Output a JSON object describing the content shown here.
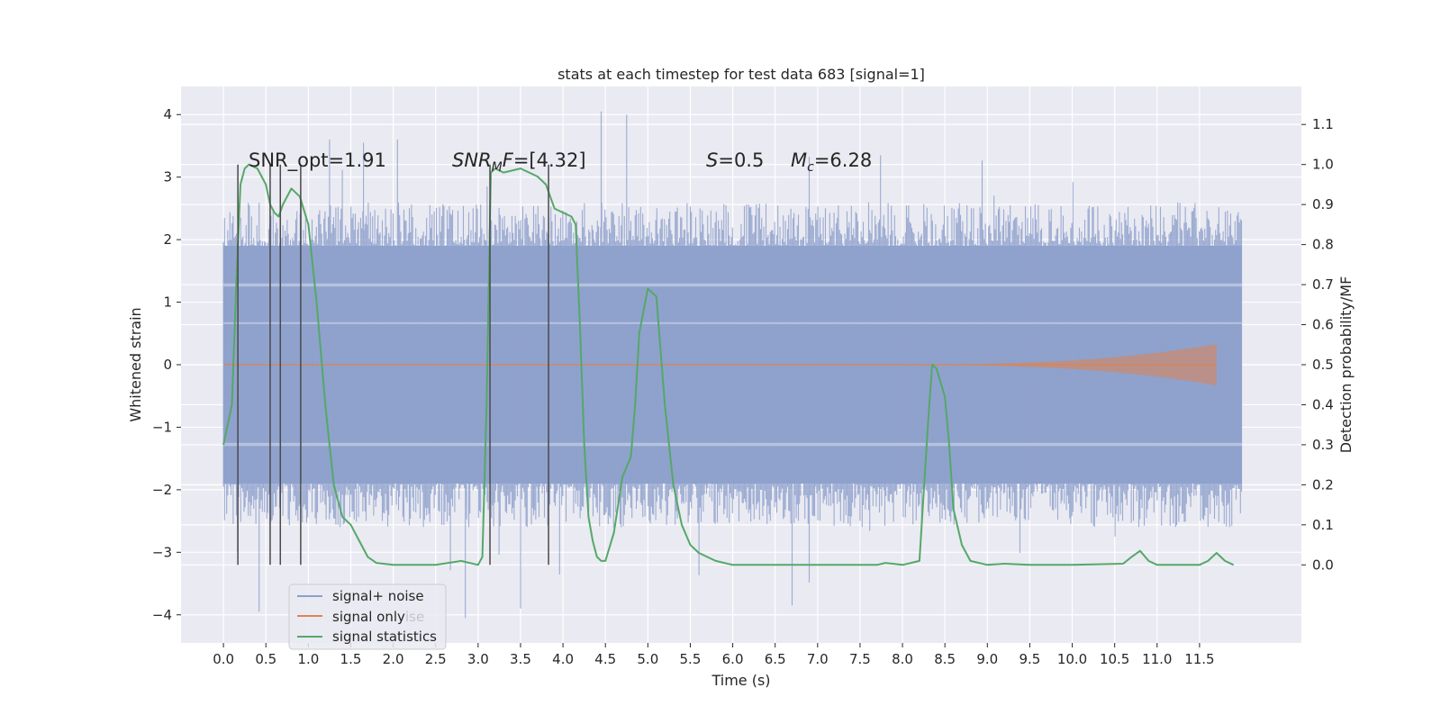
{
  "chart_data": {
    "type": "line",
    "title": "stats at each timestep for test data 683 [signal=1]",
    "xlabel": "Time (s)",
    "ylabel": "Whitened strain",
    "y2label": "Detection probability/MF",
    "xlim": [
      -0.5,
      12.7
    ],
    "ylim": [
      -4.45,
      4.45
    ],
    "y2lim": [
      -0.195,
      1.195
    ],
    "x_ticks": [
      "0.0",
      "0.5",
      "1.0",
      "1.5",
      "2.0",
      "2.5",
      "3.0",
      "3.5",
      "4.0",
      "4.5",
      "5.0",
      "5.5",
      "6.0",
      "6.5",
      "7.0",
      "7.5",
      "8.0",
      "8.5",
      "9.0",
      "9.5",
      "10.0",
      "10.5",
      "11.0",
      "11.5"
    ],
    "y_ticks": [
      "4",
      "3",
      "2",
      "1",
      "0",
      "−1",
      "−2",
      "−3",
      "−4"
    ],
    "y2_ticks": [
      "1.1",
      "1.0",
      "0.9",
      "0.8",
      "0.7",
      "0.6",
      "0.5",
      "0.4",
      "0.3",
      "0.2",
      "0.1",
      "0.0"
    ],
    "grid": true,
    "legend_position": "lower-left",
    "series": [
      {
        "name": "signal+ noise",
        "color": "#8da0cb",
        "noise_band": {
          "t_start": 0.0,
          "t_end": 12.0,
          "dense_range": [
            -1.9,
            1.9
          ],
          "typical_peaks": [
            -2.6,
            2.6
          ],
          "outlier_peaks": [
            4.05,
            4.0,
            3.6,
            3.6,
            3.55,
            -3.95,
            -4.05,
            -3.9,
            -3.85
          ]
        }
      },
      {
        "name": "signal only",
        "color": "#dd8452",
        "chirp": {
          "t_start": 7.5,
          "t_end": 11.7,
          "amplitude_end": 0.33
        }
      },
      {
        "name": "signal statistics",
        "color": "#55a868",
        "axis": "right",
        "x": [
          0.0,
          0.1,
          0.15,
          0.2,
          0.25,
          0.3,
          0.4,
          0.5,
          0.55,
          0.6,
          0.65,
          0.7,
          0.8,
          0.9,
          1.0,
          1.1,
          1.2,
          1.3,
          1.4,
          1.5,
          1.6,
          1.7,
          1.8,
          2.0,
          2.5,
          2.8,
          3.0,
          3.05,
          3.1,
          3.15,
          3.2,
          3.3,
          3.5,
          3.7,
          3.8,
          3.9,
          4.0,
          4.1,
          4.15,
          4.2,
          4.25,
          4.3,
          4.35,
          4.4,
          4.45,
          4.5,
          4.6,
          4.7,
          4.8,
          4.85,
          4.9,
          5.0,
          5.1,
          5.2,
          5.3,
          5.4,
          5.5,
          5.6,
          5.8,
          6.0,
          7.0,
          7.7,
          7.8,
          8.0,
          8.2,
          8.3,
          8.35,
          8.4,
          8.5,
          8.55,
          8.6,
          8.7,
          8.8,
          9.0,
          9.2,
          9.5,
          10.0,
          10.6,
          10.7,
          10.8,
          10.9,
          11.0,
          11.5,
          11.6,
          11.7,
          11.8,
          11.9
        ],
        "values": [
          0.3,
          0.4,
          0.7,
          0.95,
          0.99,
          1.0,
          0.99,
          0.95,
          0.9,
          0.88,
          0.87,
          0.9,
          0.94,
          0.92,
          0.85,
          0.65,
          0.4,
          0.2,
          0.12,
          0.1,
          0.06,
          0.02,
          0.005,
          0.0,
          0.0,
          0.01,
          0.0,
          0.02,
          0.4,
          0.98,
          0.99,
          0.98,
          0.99,
          0.97,
          0.95,
          0.89,
          0.88,
          0.87,
          0.85,
          0.6,
          0.3,
          0.12,
          0.06,
          0.02,
          0.01,
          0.01,
          0.08,
          0.22,
          0.27,
          0.4,
          0.58,
          0.69,
          0.67,
          0.4,
          0.2,
          0.1,
          0.05,
          0.03,
          0.01,
          0.0,
          0.0,
          0.0,
          0.005,
          0.0,
          0.01,
          0.35,
          0.5,
          0.49,
          0.42,
          0.3,
          0.14,
          0.05,
          0.01,
          0.0,
          0.003,
          0.0,
          0.0,
          0.003,
          0.02,
          0.035,
          0.01,
          0.0,
          0.0,
          0.01,
          0.03,
          0.01,
          0.0
        ]
      }
    ],
    "vertical_markers": {
      "x": [
        0.17,
        0.55,
        0.67,
        0.91,
        3.14,
        3.83
      ],
      "y_range": [
        -3.2,
        3.2
      ],
      "color": "#4a4a4a"
    },
    "annotations": [
      {
        "text": "SNR_opt=1.91",
        "x": 0.2
      },
      {
        "text": "SNR_MF=[4.32]",
        "x": 2.6
      },
      {
        "text": "S=0.5",
        "x": 5.6
      },
      {
        "text": "M_c=6.28",
        "x": 6.6
      }
    ],
    "annotation_y": 3.2,
    "obscured_legend_text": "ise"
  }
}
